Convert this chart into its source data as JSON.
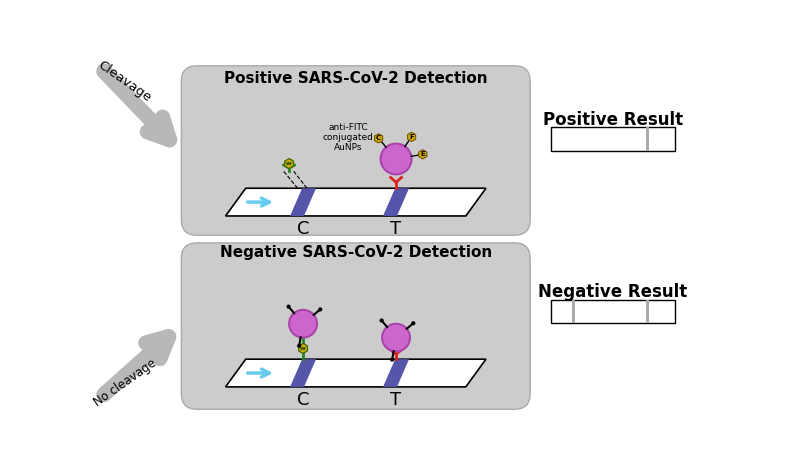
{
  "bg_color": "#ffffff",
  "panel_bg": "#cccccc",
  "title_pos": "Positive SARS-CoV-2 Detection",
  "title_neg": "Negative SARS-CoV-2 Detection",
  "pos_result_label": "Positive Result",
  "neg_result_label": "Negative Result",
  "cleavage_label": "Cleavage",
  "no_cleavage_label": "No cleavage",
  "C_label": "C",
  "T_label": "T",
  "anti_fitc_label": "anti-FITC\nconjugated\nAuNPs",
  "lateral_flow_color": "#5555aa",
  "nanoparticle_color": "#cc66cc",
  "nanoparticle_edge": "#aa44aa",
  "fitc_color": "#ccaa00",
  "antibody_red": "#dd2222",
  "antibody_green": "#228822",
  "flow_arrow_color": "#66ccee",
  "arrow_gray": "#b8b8b8",
  "strip_gray": "#aaaaaa"
}
